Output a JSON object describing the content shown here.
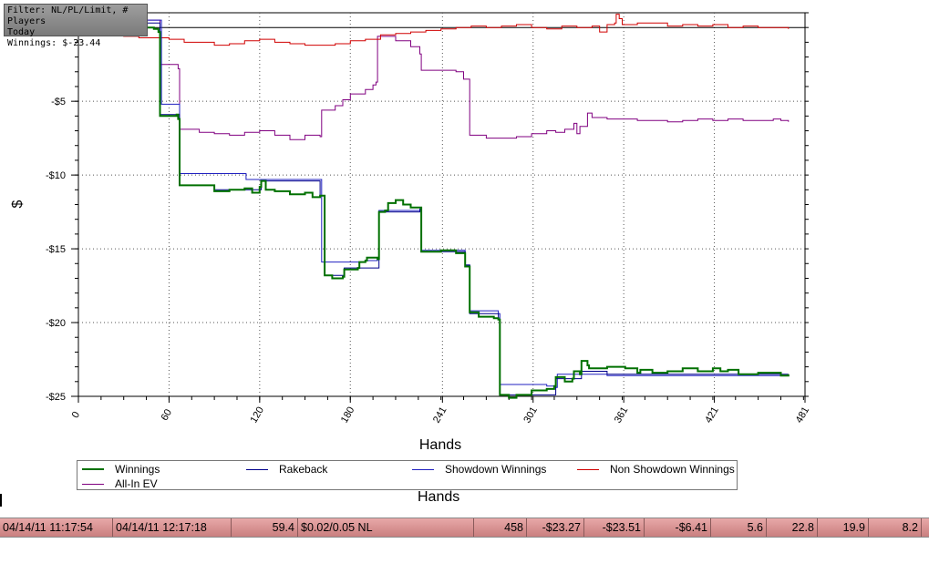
{
  "filter_box": {
    "line1": "Filter: NL/PL/Limit, # Players",
    "line2": "Today",
    "line3": "Winnings: $-23.44"
  },
  "chart_data": {
    "type": "line",
    "xlabel": "Hands",
    "ylabel": "$",
    "x_ticks": [
      "0",
      "60",
      "120",
      "180",
      "241",
      "301",
      "361",
      "421",
      "481"
    ],
    "y_ticks": [
      "-$5",
      "-$10",
      "-$15",
      "-$20",
      "-$25"
    ],
    "xlim": [
      0,
      481
    ],
    "ylim": [
      -25,
      1
    ],
    "grid": true,
    "legend_position": "bottom",
    "series": [
      {
        "name": "Winnings",
        "color": "#007000",
        "points": [
          [
            0,
            0.1
          ],
          [
            5,
            0.4
          ],
          [
            10,
            0.3
          ],
          [
            20,
            0.2
          ],
          [
            30,
            0.1
          ],
          [
            40,
            0
          ],
          [
            50,
            -0.1
          ],
          [
            53,
            -0.3
          ],
          [
            54,
            -6
          ],
          [
            60,
            -6
          ],
          [
            65,
            -5.9
          ],
          [
            66,
            -6.2
          ],
          [
            67,
            -10.7
          ],
          [
            80,
            -10.7
          ],
          [
            90,
            -11.1
          ],
          [
            100,
            -11
          ],
          [
            110,
            -10.9
          ],
          [
            115,
            -11.2
          ],
          [
            120,
            -10.8
          ],
          [
            121,
            -10.4
          ],
          [
            124,
            -11
          ],
          [
            130,
            -11.1
          ],
          [
            140,
            -11.3
          ],
          [
            150,
            -11.2
          ],
          [
            155,
            -11.5
          ],
          [
            160,
            -11.4
          ],
          [
            163,
            -16.8
          ],
          [
            168,
            -17
          ],
          [
            175,
            -16.9
          ],
          [
            176,
            -16.4
          ],
          [
            185,
            -16.3
          ],
          [
            186,
            -15.9
          ],
          [
            190,
            -15.8
          ],
          [
            191,
            -15.6
          ],
          [
            198,
            -15.7
          ],
          [
            199,
            -12.5
          ],
          [
            203,
            -12.4
          ],
          [
            205,
            -11.9
          ],
          [
            210,
            -11.7
          ],
          [
            215,
            -12
          ],
          [
            220,
            -12.2
          ],
          [
            226,
            -12.2
          ],
          [
            227,
            -15.2
          ],
          [
            240,
            -15.1
          ],
          [
            250,
            -15.3
          ],
          [
            254,
            -15.3
          ],
          [
            256,
            -16.2
          ],
          [
            258,
            -16.2
          ],
          [
            259,
            -19.3
          ],
          [
            265,
            -19.6
          ],
          [
            275,
            -19.7
          ],
          [
            278,
            -19.8
          ],
          [
            279,
            -24.9
          ],
          [
            285,
            -25.1
          ],
          [
            290,
            -24.9
          ],
          [
            300,
            -24.6
          ],
          [
            310,
            -24.5
          ],
          [
            315,
            -24.3
          ],
          [
            316,
            -23.7
          ],
          [
            322,
            -24
          ],
          [
            327,
            -23.8
          ],
          [
            328,
            -23.3
          ],
          [
            332,
            -23.5
          ],
          [
            333,
            -22.6
          ],
          [
            337,
            -22.9
          ],
          [
            338,
            -23.1
          ],
          [
            350,
            -23
          ],
          [
            362,
            -23.1
          ],
          [
            370,
            -23.4
          ],
          [
            372,
            -23.2
          ],
          [
            380,
            -23.4
          ],
          [
            390,
            -23.3
          ],
          [
            400,
            -23.1
          ],
          [
            410,
            -23.3
          ],
          [
            420,
            -23.1
          ],
          [
            425,
            -23.3
          ],
          [
            430,
            -23.2
          ],
          [
            437,
            -23.5
          ],
          [
            450,
            -23.4
          ],
          [
            460,
            -23.4
          ],
          [
            465,
            -23.6
          ],
          [
            470,
            -23.5
          ]
        ]
      },
      {
        "name": "Rakeback",
        "color": "#00008b",
        "points": [
          [
            0,
            0.3
          ],
          [
            53,
            0.3
          ],
          [
            54,
            -5.9
          ],
          [
            66,
            -5.9
          ],
          [
            67,
            -10.7
          ],
          [
            80,
            -10.7
          ],
          [
            90,
            -11
          ],
          [
            121,
            -10.4
          ],
          [
            160,
            -11.4
          ],
          [
            163,
            -16.8
          ],
          [
            176,
            -16.3
          ],
          [
            199,
            -12.5
          ],
          [
            226,
            -12.3
          ],
          [
            227,
            -15.2
          ],
          [
            256,
            -16.1
          ],
          [
            259,
            -19.4
          ],
          [
            278,
            -19.8
          ],
          [
            279,
            -24.9
          ],
          [
            316,
            -23.8
          ],
          [
            333,
            -23.3
          ],
          [
            350,
            -23.5
          ],
          [
            470,
            -23.5
          ]
        ]
      },
      {
        "name": "Showdown Winnings",
        "color": "#2020c0",
        "points": [
          [
            0,
            0.5
          ],
          [
            54,
            0.5
          ],
          [
            55,
            -5.2
          ],
          [
            66,
            -5.2
          ],
          [
            67,
            -9.9
          ],
          [
            110,
            -9.9
          ],
          [
            111,
            -10.3
          ],
          [
            160,
            -10.3
          ],
          [
            161,
            -15.9
          ],
          [
            176,
            -15.9
          ],
          [
            190,
            -15.8
          ],
          [
            198,
            -15.7
          ],
          [
            199,
            -12.4
          ],
          [
            226,
            -12.4
          ],
          [
            227,
            -15.1
          ],
          [
            256,
            -16.1
          ],
          [
            259,
            -19.2
          ],
          [
            278,
            -19.4
          ],
          [
            279,
            -24.2
          ],
          [
            310,
            -24.3
          ],
          [
            316,
            -24.4
          ],
          [
            317,
            -23.5
          ],
          [
            350,
            -23.6
          ],
          [
            470,
            -23.6
          ]
        ]
      },
      {
        "name": "Non Showdown Winnings",
        "color": "#d00000",
        "points": [
          [
            0,
            -0.2
          ],
          [
            10,
            -0.4
          ],
          [
            20,
            -0.5
          ],
          [
            30,
            -0.6
          ],
          [
            40,
            -0.7
          ],
          [
            50,
            -0.7
          ],
          [
            60,
            -0.8
          ],
          [
            70,
            -1
          ],
          [
            80,
            -1
          ],
          [
            90,
            -1.2
          ],
          [
            100,
            -1.1
          ],
          [
            110,
            -0.9
          ],
          [
            120,
            -0.8
          ],
          [
            130,
            -1
          ],
          [
            140,
            -1.1
          ],
          [
            150,
            -1.2
          ],
          [
            160,
            -1.2
          ],
          [
            170,
            -1.1
          ],
          [
            180,
            -0.9
          ],
          [
            190,
            -0.8
          ],
          [
            200,
            -0.5
          ],
          [
            210,
            -0.4
          ],
          [
            220,
            -0.3
          ],
          [
            230,
            -0.2
          ],
          [
            240,
            -0.1
          ],
          [
            250,
            0
          ],
          [
            260,
            0.1
          ],
          [
            270,
            0
          ],
          [
            280,
            0.1
          ],
          [
            290,
            0.2
          ],
          [
            300,
            0
          ],
          [
            310,
            -0.1
          ],
          [
            320,
            0.1
          ],
          [
            330,
            0
          ],
          [
            340,
            0.1
          ],
          [
            345,
            -0.3
          ],
          [
            350,
            0.2
          ],
          [
            355,
            0.3
          ],
          [
            356,
            0.9
          ],
          [
            358,
            0.6
          ],
          [
            360,
            0.2
          ],
          [
            370,
            0.3
          ],
          [
            380,
            0.3
          ],
          [
            390,
            0.1
          ],
          [
            400,
            0.2
          ],
          [
            410,
            0.1
          ],
          [
            420,
            0.2
          ],
          [
            430,
            0
          ],
          [
            440,
            0.1
          ],
          [
            450,
            0
          ],
          [
            460,
            0
          ],
          [
            470,
            -0.1
          ]
        ]
      },
      {
        "name": "All-In EV",
        "color": "#800080",
        "points": [
          [
            0,
            0.5
          ],
          [
            53,
            0.5
          ],
          [
            54,
            -2.5
          ],
          [
            66,
            -2.8
          ],
          [
            67,
            -6.9
          ],
          [
            80,
            -7.1
          ],
          [
            90,
            -7.2
          ],
          [
            100,
            -7.3
          ],
          [
            110,
            -7.1
          ],
          [
            120,
            -7
          ],
          [
            130,
            -7.3
          ],
          [
            140,
            -7.6
          ],
          [
            150,
            -7.3
          ],
          [
            160,
            -7.4
          ],
          [
            161,
            -5.6
          ],
          [
            170,
            -5.3
          ],
          [
            175,
            -4.9
          ],
          [
            180,
            -4.5
          ],
          [
            190,
            -4.2
          ],
          [
            195,
            -3.9
          ],
          [
            197,
            -3.7
          ],
          [
            198,
            -0.6
          ],
          [
            205,
            -0.6
          ],
          [
            210,
            -0.9
          ],
          [
            220,
            -1.3
          ],
          [
            226,
            -1.8
          ],
          [
            227,
            -2.9
          ],
          [
            240,
            -2.9
          ],
          [
            250,
            -3
          ],
          [
            255,
            -3.5
          ],
          [
            258,
            -3.5
          ],
          [
            259,
            -7.3
          ],
          [
            270,
            -7.5
          ],
          [
            280,
            -7.5
          ],
          [
            290,
            -7.4
          ],
          [
            300,
            -7.2
          ],
          [
            310,
            -7
          ],
          [
            316,
            -7.1
          ],
          [
            322,
            -6.9
          ],
          [
            328,
            -6.5
          ],
          [
            330,
            -7.2
          ],
          [
            332,
            -6.7
          ],
          [
            337,
            -5.8
          ],
          [
            340,
            -6.1
          ],
          [
            350,
            -6.2
          ],
          [
            360,
            -6.2
          ],
          [
            370,
            -6.3
          ],
          [
            380,
            -6.3
          ],
          [
            390,
            -6.4
          ],
          [
            400,
            -6.3
          ],
          [
            410,
            -6.2
          ],
          [
            420,
            -6.3
          ],
          [
            430,
            -6.2
          ],
          [
            440,
            -6.3
          ],
          [
            450,
            -6.3
          ],
          [
            460,
            -6.2
          ],
          [
            465,
            -6.3
          ],
          [
            470,
            -6.4
          ]
        ]
      }
    ]
  },
  "legend": {
    "items": [
      {
        "label": "Winnings",
        "color": "#007000"
      },
      {
        "label": "Rakeback",
        "color": "#00008b"
      },
      {
        "label": "Showdown Winnings",
        "color": "#2020c0"
      },
      {
        "label": "Non Showdown Winnings",
        "color": "#d00000"
      },
      {
        "label": "All-In EV",
        "color": "#800080"
      }
    ]
  },
  "hands_title_2": "Hands",
  "stats_row": {
    "start_time": "04/14/11 11:17:54",
    "end_time": "04/14/11 12:17:18",
    "minutes": "59.4",
    "stakes": "$0.02/0.05 NL",
    "hands": "458",
    "net_won": "-$23.27",
    "winnings": "-$23.51",
    "all_in_ev": "-$6.41",
    "stat1": "5.6",
    "stat2": "22.8",
    "stat3": "19.9",
    "stat4": "8.2"
  }
}
